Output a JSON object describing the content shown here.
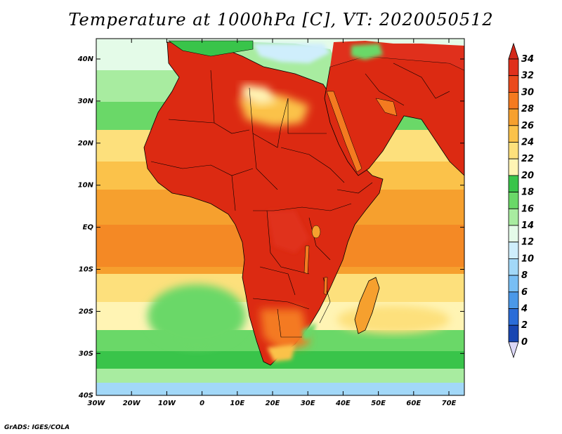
{
  "title": "Temperature at 1000hPa [C], VT: 2020050512",
  "credit": "GrADS: IGES/COLA",
  "lon_ticks": [
    "30W",
    "20W",
    "10W",
    "0",
    "10E",
    "20E",
    "30E",
    "40E",
    "50E",
    "60E",
    "70E"
  ],
  "lat_ticks": [
    "40N",
    "30N",
    "20N",
    "10N",
    "EQ",
    "10S",
    "20S",
    "30S",
    "40S"
  ],
  "colorbar": {
    "labels": [
      "34",
      "32",
      "30",
      "28",
      "26",
      "24",
      "22",
      "20",
      "18",
      "16",
      "14",
      "12",
      "10",
      "8",
      "6",
      "4",
      "2",
      "0"
    ],
    "colors": [
      "#e0301c",
      "#ea4a1c",
      "#f47a20",
      "#f6a02e",
      "#fbc24a",
      "#fde07c",
      "#fff4b4",
      "#39c44a",
      "#6ad868",
      "#a8eca0",
      "#e4fbe8",
      "#cfeefc",
      "#a2d8f8",
      "#78bef4",
      "#4a98e8",
      "#2a6cd8",
      "#1846b2",
      "#0c1c6c"
    ]
  },
  "color_scale": {
    "ocean_subtropical": "#f6a02e",
    "ocean_tropical": "#f47a20",
    "land_hot": "#dc2a12",
    "ocean_cool": "#6ad868",
    "ocean_cold": "#cfeefc",
    "mediterranean": "#a8eca0"
  }
}
